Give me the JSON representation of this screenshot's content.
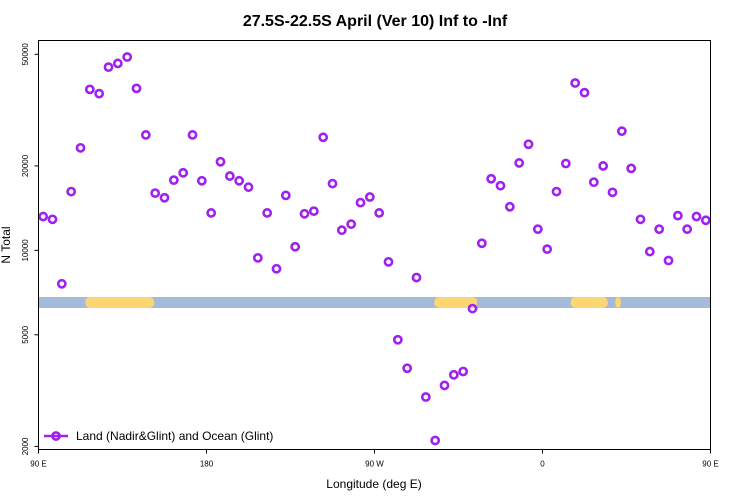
{
  "chart_data": {
    "type": "scatter",
    "title": "27.5S-22.5S April (Ver 10)   Inf to -Inf",
    "xlabel": "Longitude (deg E)",
    "ylabel": "N Total",
    "y_scale": "log",
    "xlim": [
      90,
      450
    ],
    "ylim": [
      1950,
      56000
    ],
    "x_ticks": [
      {
        "value": 90,
        "label": "90 E"
      },
      {
        "value": 180,
        "label": "180"
      },
      {
        "value": 270,
        "label": "90 W"
      },
      {
        "value": 360,
        "label": "0"
      },
      {
        "value": 450,
        "label": "90 E"
      },
      {
        "value": 540,
        "label": "180"
      }
    ],
    "y_ticks": [
      {
        "value": 2000,
        "label": "2000"
      },
      {
        "value": 5000,
        "label": "5000"
      },
      {
        "value": 10000,
        "label": "10000"
      },
      {
        "value": 20000,
        "label": "20000"
      },
      {
        "value": 50000,
        "label": "50000"
      }
    ],
    "grid": false,
    "legend_position": "bottom-left",
    "colors": {
      "marker": "#a020f0",
      "ocean": "#a3bad8",
      "land": "#fcd672"
    },
    "surface_band": {
      "ocean_color": "#a3bad8",
      "land_color": "#fcd672",
      "land_segments": [
        [
          115,
          152
        ],
        [
          302,
          325
        ],
        [
          375,
          395
        ],
        [
          399,
          402
        ],
        [
          474,
          515
        ]
      ]
    },
    "series": [
      {
        "name": "Land (Nadir&Glint) and Ocean (Glint)",
        "x": [
          92.5,
          97.5,
          102.5,
          107.5,
          112.5,
          117.5,
          122.5,
          127.5,
          132.5,
          137.5,
          142.5,
          147.5,
          152.5,
          157.5,
          162.5,
          167.5,
          172.5,
          177.5,
          182.5,
          187.5,
          192.5,
          197.5,
          202.5,
          207.5,
          212.5,
          217.5,
          222.5,
          227.5,
          232.5,
          237.5,
          242.5,
          247.5,
          252.5,
          257.5,
          262.5,
          267.5,
          272.5,
          277.5,
          282.5,
          287.5,
          292.5,
          297.5,
          302.5,
          307.5,
          312.5,
          317.5,
          322.5,
          327.5,
          332.5,
          337.5,
          342.5,
          347.5,
          352.5,
          357.5,
          362.5,
          367.5,
          372.5,
          377.5,
          382.5,
          387.5,
          392.5,
          397.5,
          402.5,
          407.5,
          412.5,
          417.5,
          422.5,
          427.5,
          432.5,
          437.5,
          442.5,
          447.5
        ],
        "y": [
          13200,
          12900,
          7600,
          16200,
          23200,
          37500,
          36200,
          45000,
          46400,
          48900,
          37800,
          25800,
          16000,
          15400,
          17800,
          18900,
          25800,
          17700,
          13600,
          20700,
          18400,
          17700,
          16800,
          9400,
          13600,
          8600,
          15700,
          10300,
          13500,
          13800,
          25300,
          17300,
          11800,
          12400,
          14800,
          15500,
          13600,
          9100,
          4800,
          3800,
          8000,
          3000,
          2100,
          3300,
          3600,
          3700,
          6200,
          10600,
          18000,
          17000,
          14300,
          20500,
          23900,
          11900,
          10100,
          16200,
          20400,
          39500,
          36500,
          17500,
          20000,
          16100,
          26600,
          19600,
          12900,
          9900,
          11900,
          9200,
          13300,
          11900,
          13200,
          12800
        ]
      }
    ]
  }
}
